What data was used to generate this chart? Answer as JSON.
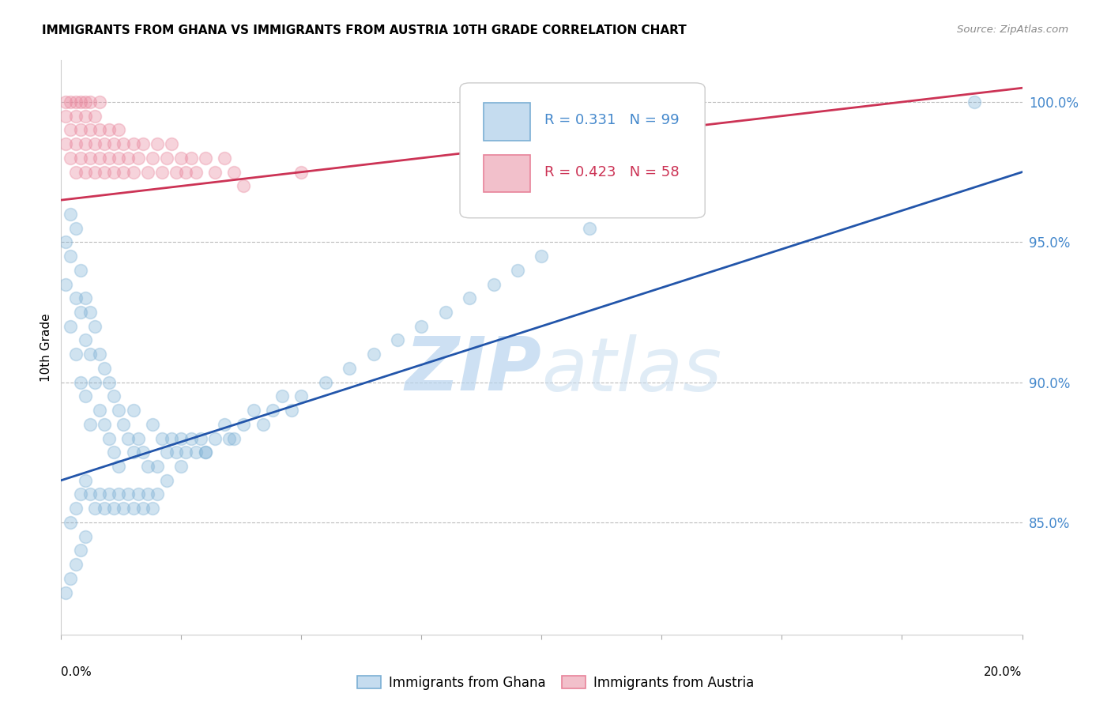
{
  "title": "IMMIGRANTS FROM GHANA VS IMMIGRANTS FROM AUSTRIA 10TH GRADE CORRELATION CHART",
  "source": "Source: ZipAtlas.com",
  "ylabel": "10th Grade",
  "xlim": [
    0.0,
    0.2
  ],
  "ylim": [
    81.0,
    101.5
  ],
  "ghana_color": "#7bafd4",
  "austria_color": "#e8839a",
  "ghana_line_color": "#2255aa",
  "austria_line_color": "#cc3355",
  "watermark_zip": "ZIP",
  "watermark_atlas": "atlas",
  "legend_r_ghana": "R = 0.331",
  "legend_n_ghana": "N = 99",
  "legend_r_austria": "R = 0.423",
  "legend_n_austria": "N = 58",
  "ytick_vals": [
    85.0,
    90.0,
    95.0,
    100.0
  ],
  "ytick_labels": [
    "85.0%",
    "90.0%",
    "95.0%",
    "100.0%"
  ],
  "ghana_x": [
    0.001,
    0.001,
    0.002,
    0.002,
    0.002,
    0.003,
    0.003,
    0.003,
    0.004,
    0.004,
    0.004,
    0.005,
    0.005,
    0.005,
    0.006,
    0.006,
    0.006,
    0.007,
    0.007,
    0.008,
    0.008,
    0.009,
    0.009,
    0.01,
    0.01,
    0.011,
    0.011,
    0.012,
    0.012,
    0.013,
    0.014,
    0.015,
    0.015,
    0.016,
    0.017,
    0.018,
    0.019,
    0.02,
    0.021,
    0.022,
    0.023,
    0.024,
    0.025,
    0.026,
    0.027,
    0.028,
    0.029,
    0.03,
    0.032,
    0.034,
    0.036,
    0.038,
    0.04,
    0.042,
    0.044,
    0.046,
    0.048,
    0.05,
    0.055,
    0.06,
    0.065,
    0.07,
    0.075,
    0.08,
    0.085,
    0.09,
    0.095,
    0.1,
    0.11,
    0.12,
    0.001,
    0.002,
    0.003,
    0.004,
    0.005,
    0.002,
    0.003,
    0.004,
    0.005,
    0.006,
    0.007,
    0.008,
    0.009,
    0.01,
    0.011,
    0.012,
    0.013,
    0.014,
    0.015,
    0.016,
    0.017,
    0.018,
    0.019,
    0.02,
    0.022,
    0.025,
    0.03,
    0.035,
    0.19
  ],
  "ghana_y": [
    93.5,
    95.0,
    92.0,
    94.5,
    96.0,
    91.0,
    93.0,
    95.5,
    90.0,
    92.5,
    94.0,
    89.5,
    91.5,
    93.0,
    88.5,
    91.0,
    92.5,
    90.0,
    92.0,
    89.0,
    91.0,
    88.5,
    90.5,
    88.0,
    90.0,
    87.5,
    89.5,
    87.0,
    89.0,
    88.5,
    88.0,
    87.5,
    89.0,
    88.0,
    87.5,
    87.0,
    88.5,
    87.0,
    88.0,
    87.5,
    88.0,
    87.5,
    88.0,
    87.5,
    88.0,
    87.5,
    88.0,
    87.5,
    88.0,
    88.5,
    88.0,
    88.5,
    89.0,
    88.5,
    89.0,
    89.5,
    89.0,
    89.5,
    90.0,
    90.5,
    91.0,
    91.5,
    92.0,
    92.5,
    93.0,
    93.5,
    94.0,
    94.5,
    95.5,
    96.5,
    82.5,
    83.0,
    83.5,
    84.0,
    84.5,
    85.0,
    85.5,
    86.0,
    86.5,
    86.0,
    85.5,
    86.0,
    85.5,
    86.0,
    85.5,
    86.0,
    85.5,
    86.0,
    85.5,
    86.0,
    85.5,
    86.0,
    85.5,
    86.0,
    86.5,
    87.0,
    87.5,
    88.0,
    100.0
  ],
  "austria_x": [
    0.001,
    0.001,
    0.001,
    0.002,
    0.002,
    0.002,
    0.003,
    0.003,
    0.003,
    0.003,
    0.004,
    0.004,
    0.004,
    0.005,
    0.005,
    0.005,
    0.005,
    0.006,
    0.006,
    0.006,
    0.007,
    0.007,
    0.007,
    0.008,
    0.008,
    0.008,
    0.009,
    0.009,
    0.01,
    0.01,
    0.011,
    0.011,
    0.012,
    0.012,
    0.013,
    0.013,
    0.014,
    0.015,
    0.015,
    0.016,
    0.017,
    0.018,
    0.019,
    0.02,
    0.021,
    0.022,
    0.023,
    0.024,
    0.025,
    0.026,
    0.027,
    0.028,
    0.03,
    0.032,
    0.034,
    0.036,
    0.038,
    0.05
  ],
  "austria_y": [
    99.5,
    100.0,
    98.5,
    99.0,
    100.0,
    98.0,
    99.5,
    100.0,
    98.5,
    97.5,
    99.0,
    100.0,
    98.0,
    99.5,
    100.0,
    98.5,
    97.5,
    99.0,
    100.0,
    98.0,
    98.5,
    99.5,
    97.5,
    98.0,
    99.0,
    100.0,
    98.5,
    97.5,
    98.0,
    99.0,
    98.5,
    97.5,
    98.0,
    99.0,
    98.5,
    97.5,
    98.0,
    98.5,
    97.5,
    98.0,
    98.5,
    97.5,
    98.0,
    98.5,
    97.5,
    98.0,
    98.5,
    97.5,
    98.0,
    97.5,
    98.0,
    97.5,
    98.0,
    97.5,
    98.0,
    97.5,
    97.0,
    97.5
  ],
  "ghana_line_x0": 0.0,
  "ghana_line_x1": 0.2,
  "ghana_line_y0": 86.5,
  "ghana_line_y1": 97.5,
  "austria_line_x0": 0.0,
  "austria_line_x1": 0.2,
  "austria_line_y0": 96.5,
  "austria_line_y1": 100.5
}
